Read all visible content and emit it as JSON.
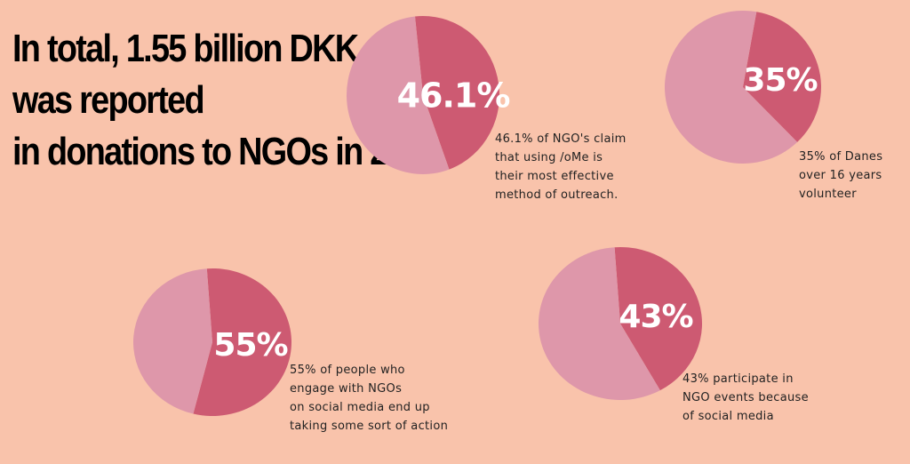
{
  "headline": {
    "lines": [
      "In total, 1.55 billion DKK",
      "was reported",
      "in donations to NGOs in 2015"
    ]
  },
  "colors": {
    "background": "#f9c3ab",
    "highlight_slice": "#cd5a72",
    "remainder_slice": "#de97aa"
  },
  "chart_data": [
    {
      "type": "pie",
      "title": "",
      "slices": [
        {
          "label": "46.1%",
          "value": 46.1
        },
        {
          "label": "",
          "value": 53.9
        }
      ],
      "caption": [
        "46.1% of NGO's claim",
        "that using /oMe is",
        "their most effective",
        "method of outreach."
      ]
    },
    {
      "type": "pie",
      "title": "",
      "slices": [
        {
          "label": "35%",
          "value": 35
        },
        {
          "label": "",
          "value": 65
        }
      ],
      "caption": [
        "35% of Danes",
        "over 16 years",
        "volunteer"
      ]
    },
    {
      "type": "pie",
      "title": "",
      "slices": [
        {
          "label": "55%",
          "value": 55
        },
        {
          "label": "",
          "value": 45
        }
      ],
      "caption": [
        "55% of people who",
        "engage with NGOs",
        "on social media end up",
        "taking some sort of action"
      ]
    },
    {
      "type": "pie",
      "title": "",
      "slices": [
        {
          "label": "43%",
          "value": 43
        },
        {
          "label": "",
          "value": 57
        }
      ],
      "caption": [
        "43% participate in",
        "NGO events because",
        "of social media"
      ]
    }
  ]
}
